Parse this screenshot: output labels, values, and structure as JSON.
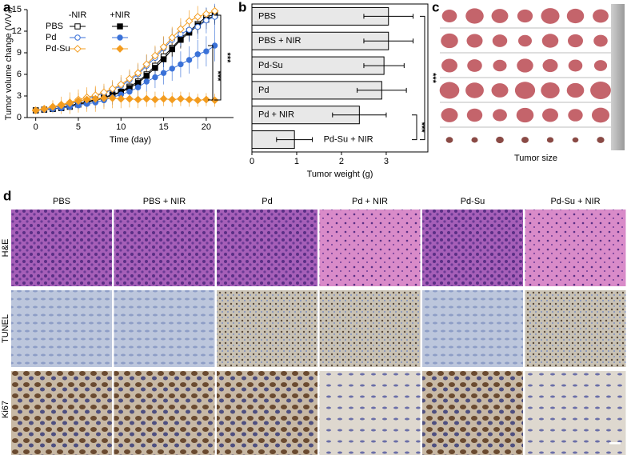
{
  "chart_data": [
    {
      "type": "line",
      "panel": "a",
      "xlabel": "Time (day)",
      "ylabel": "Tumor volume change (V/V₀)",
      "legend_headers": [
        "-NIR",
        "+NIR"
      ],
      "x": [
        0,
        1,
        2,
        3,
        4,
        5,
        6,
        7,
        8,
        9,
        10,
        11,
        12,
        13,
        14,
        15,
        16,
        17,
        18,
        19,
        20,
        21
      ],
      "xlim": [
        -1,
        23.2
      ],
      "xticks": [
        0,
        5,
        10,
        15,
        20
      ],
      "ylim": [
        0,
        15
      ],
      "yticks": [
        0,
        3,
        6,
        9,
        12,
        15
      ],
      "series": [
        {
          "name": "PBS",
          "color": "#000000",
          "marker": "square",
          "filled": false,
          "values": [
            1,
            1.1,
            1.2,
            1.4,
            1.6,
            2,
            2.2,
            2.5,
            2.8,
            3.2,
            3.6,
            4.3,
            5,
            6,
            7.2,
            8.5,
            9.7,
            11,
            12,
            13,
            14,
            14.3
          ],
          "errors": [
            0.1,
            0.2,
            0.3,
            0.4,
            0.4,
            0.5,
            0.6,
            0.7,
            0.7,
            0.8,
            0.8,
            0.9,
            1,
            1,
            1.1,
            1.1,
            1.2,
            1.2,
            1.2,
            1.2,
            1.2,
            1.2
          ]
        },
        {
          "name": "PBS",
          "color": "#000000",
          "marker": "square",
          "filled": true,
          "values": [
            1,
            1.1,
            1.2,
            1.3,
            1.5,
            1.8,
            2.1,
            2.4,
            2.7,
            3.1,
            3.5,
            4.1,
            4.8,
            5.8,
            6.9,
            8.1,
            9.5,
            10.8,
            11.8,
            12.8,
            13.6,
            14.2
          ],
          "errors": [
            0.1,
            0.2,
            0.3,
            0.3,
            0.4,
            0.5,
            0.5,
            0.6,
            0.7,
            0.7,
            0.8,
            0.9,
            0.9,
            1,
            1,
            1.1,
            1.1,
            1.2,
            1.2,
            1.2,
            1.3,
            1.3
          ]
        },
        {
          "name": "Pd",
          "color": "#3b72d8",
          "marker": "circle",
          "filled": false,
          "values": [
            1,
            1.2,
            1.4,
            1.6,
            1.9,
            2.2,
            2.6,
            3,
            3.4,
            3.9,
            4.4,
            5.2,
            6,
            7.2,
            8.3,
            9.6,
            10.8,
            11.6,
            12.2,
            12.6,
            13.5,
            14
          ],
          "errors": [
            0.1,
            0.3,
            0.4,
            0.5,
            0.6,
            0.7,
            0.8,
            0.9,
            1,
            1.1,
            1.2,
            1.3,
            1.4,
            1.5,
            1.5,
            1.6,
            1.6,
            1.7,
            1.7,
            1.7,
            1.8,
            1.8
          ]
        },
        {
          "name": "Pd",
          "color": "#3b72d8",
          "marker": "circle",
          "filled": true,
          "values": [
            1,
            1.1,
            1.2,
            1.3,
            1.5,
            1.7,
            1.9,
            2.1,
            2.4,
            2.8,
            3.2,
            3.6,
            4.2,
            5,
            5.6,
            6.2,
            6.8,
            7.4,
            8,
            8.8,
            9.2,
            10
          ],
          "errors": [
            0.1,
            0.2,
            0.3,
            0.4,
            0.5,
            0.6,
            0.7,
            0.8,
            0.9,
            1,
            1.1,
            1.2,
            1.3,
            1.4,
            1.5,
            1.6,
            1.7,
            1.8,
            1.9,
            2,
            2.1,
            2.2
          ]
        },
        {
          "name": "Pd-Su",
          "color": "#f39c1f",
          "marker": "diamond",
          "filled": false,
          "values": [
            1,
            1.2,
            1.5,
            1.8,
            2.1,
            2.5,
            2.8,
            3.1,
            3.5,
            4,
            4.6,
            5.4,
            6.2,
            7.4,
            8.6,
            9.8,
            11.1,
            12.3,
            13.4,
            14,
            14.4,
            14.8
          ],
          "errors": [
            0.1,
            0.3,
            0.5,
            0.6,
            0.7,
            0.9,
            1,
            1.1,
            1.2,
            1.2,
            1.3,
            1.3,
            1.4,
            1.4,
            1.4,
            1.5,
            1.5,
            1.5,
            1.5,
            1.5,
            0.6,
            0.6
          ]
        },
        {
          "name": "Pd-Su",
          "color": "#f39c1f",
          "marker": "diamond",
          "filled": true,
          "values": [
            1,
            1.2,
            1.5,
            1.7,
            2,
            2.3,
            2.5,
            2.6,
            2.7,
            2.7,
            2.6,
            2.6,
            2.5,
            2.6,
            2.5,
            2.6,
            2.5,
            2.6,
            2.5,
            2.4,
            2.5,
            2.4
          ],
          "errors": [
            0.2,
            0.5,
            0.9,
            1.2,
            1.5,
            1.6,
            1.7,
            1.8,
            1.5,
            1.4,
            1.3,
            1.2,
            1.2,
            1.1,
            1.1,
            1,
            1,
            1,
            1,
            0.9,
            0.9,
            0.9
          ]
        }
      ],
      "annotations": [
        "***",
        "***"
      ]
    },
    {
      "type": "hbar",
      "panel": "b",
      "xlabel": "Tumor weight (g)",
      "categories": [
        "PBS",
        "PBS + NIR",
        "Pd-Su",
        "Pd",
        "Pd + NIR",
        "Pd-Su + NIR"
      ],
      "values": [
        3.05,
        3.05,
        2.95,
        2.9,
        2.4,
        0.95
      ],
      "errors": [
        0.55,
        0.55,
        0.45,
        0.55,
        0.6,
        0.4
      ],
      "color": "#e8e8e8",
      "xlim": [
        0,
        3.93
      ],
      "xticks": [
        0,
        1,
        2,
        3
      ],
      "annotations": [
        "***",
        "***"
      ]
    }
  ],
  "panel_c": {
    "label": "c",
    "caption": "Tumor size"
  },
  "panel_d": {
    "label": "d",
    "columns": [
      "PBS",
      "PBS + NIR",
      "Pd",
      "Pd + NIR",
      "Pd-Su",
      "Pd-Su + NIR"
    ],
    "rows": [
      "H&E",
      "TUNEL",
      "Ki67"
    ]
  }
}
